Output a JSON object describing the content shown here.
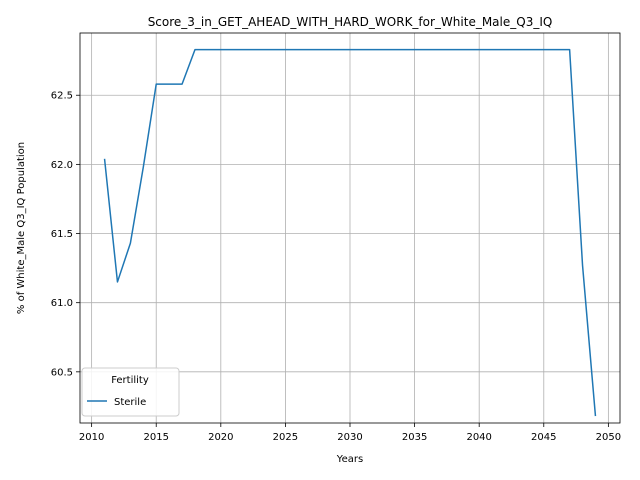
{
  "chart_data": {
    "type": "line",
    "title": "Score_3_in_GET_AHEAD_WITH_HARD_WORK_for_White_Male_Q3_IQ",
    "xlabel": "Years",
    "ylabel": "% of White_Male Q3_IQ Population",
    "xlim": [
      2009.1,
      2050.9
    ],
    "ylim": [
      60.13,
      62.95
    ],
    "x_ticks": [
      2010,
      2015,
      2020,
      2025,
      2030,
      2035,
      2040,
      2045,
      2050
    ],
    "y_ticks": [
      60.5,
      61.0,
      61.5,
      62.0,
      62.5
    ],
    "grid": true,
    "legend": {
      "title": "Fertility",
      "position": "lower-left"
    },
    "series": [
      {
        "name": "Sterile",
        "color": "#1f77b4",
        "x": [
          2011,
          2012,
          2013,
          2014,
          2015,
          2016,
          2017,
          2018,
          2019,
          2020,
          2025,
          2030,
          2035,
          2040,
          2045,
          2046,
          2047,
          2048,
          2049
        ],
        "y": [
          62.04,
          61.15,
          61.43,
          61.98,
          62.58,
          62.58,
          62.58,
          62.83,
          62.83,
          62.83,
          62.83,
          62.83,
          62.83,
          62.83,
          62.83,
          62.83,
          62.83,
          61.27,
          60.18
        ]
      }
    ]
  }
}
